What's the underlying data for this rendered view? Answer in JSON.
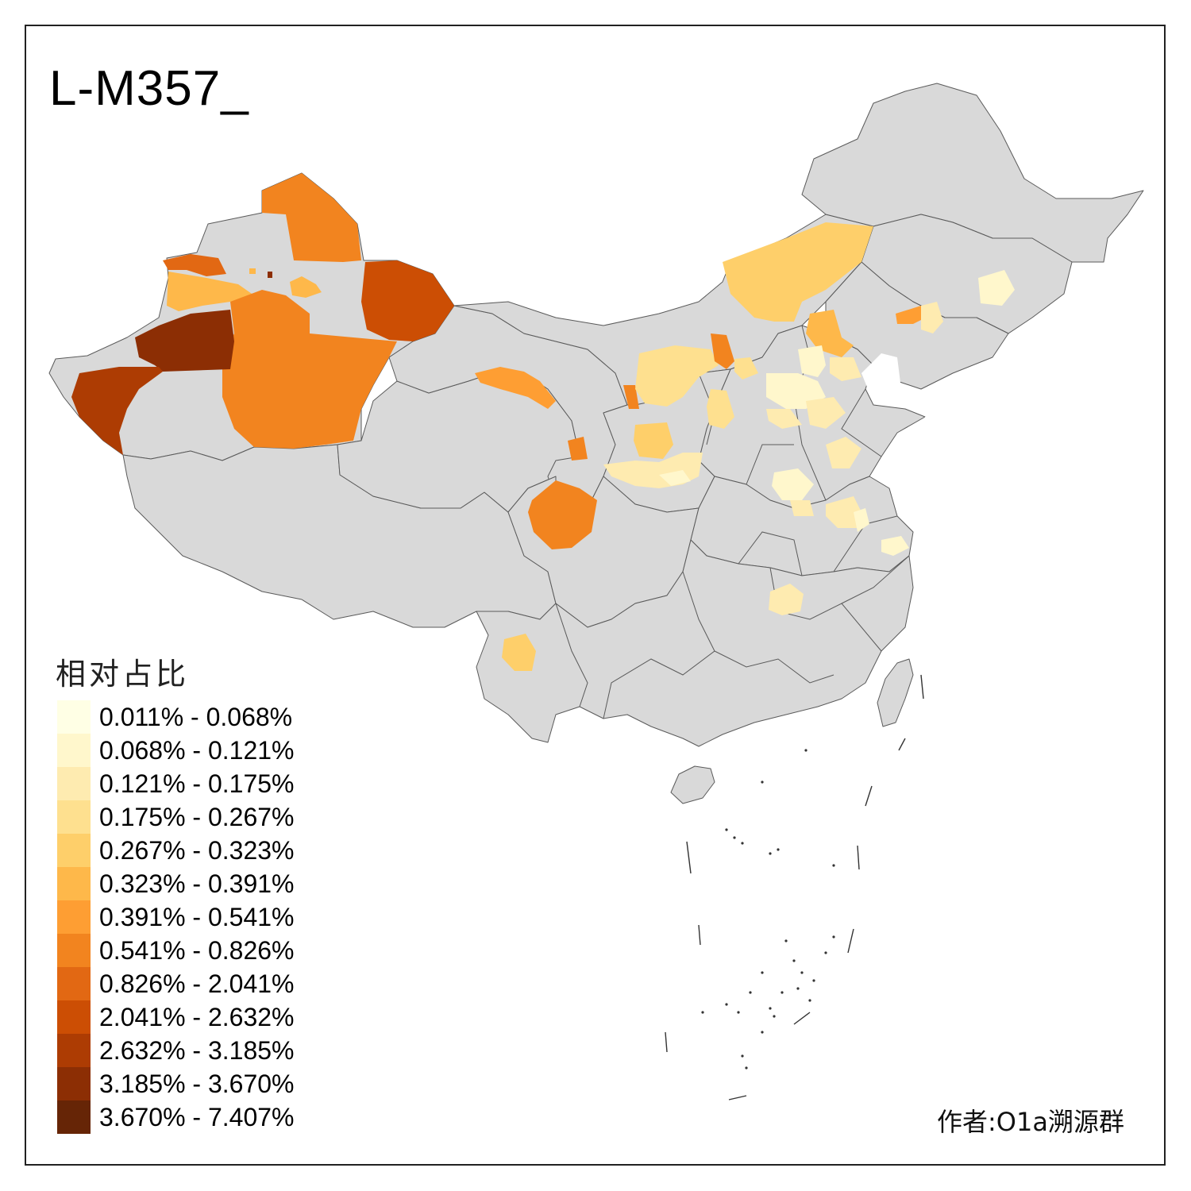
{
  "title": "L-M357_",
  "legend": {
    "title": "相对占比",
    "items": [
      {
        "label": "0.011% - 0.068%",
        "color": "#FFFFE5"
      },
      {
        "label": "0.068% - 0.121%",
        "color": "#FFF7CC"
      },
      {
        "label": "0.121% - 0.175%",
        "color": "#FEEBB0"
      },
      {
        "label": "0.175% - 0.267%",
        "color": "#FEE08F"
      },
      {
        "label": "0.267% - 0.323%",
        "color": "#FECF6A"
      },
      {
        "label": "0.323% - 0.391%",
        "color": "#FEB84A"
      },
      {
        "label": "0.391% - 0.541%",
        "color": "#FE9E33"
      },
      {
        "label": "0.541% - 0.826%",
        "color": "#F2841F"
      },
      {
        "label": "0.826% - 2.041%",
        "color": "#E26813"
      },
      {
        "label": "2.041% - 2.632%",
        "color": "#CC4E04"
      },
      {
        "label": "2.632% - 3.185%",
        "color": "#AD3C03"
      },
      {
        "label": "3.185% - 3.670%",
        "color": "#8C2E04"
      },
      {
        "label": "3.670% - 7.407%",
        "color": "#662506"
      }
    ]
  },
  "author": "作者:O1a溯源群"
}
